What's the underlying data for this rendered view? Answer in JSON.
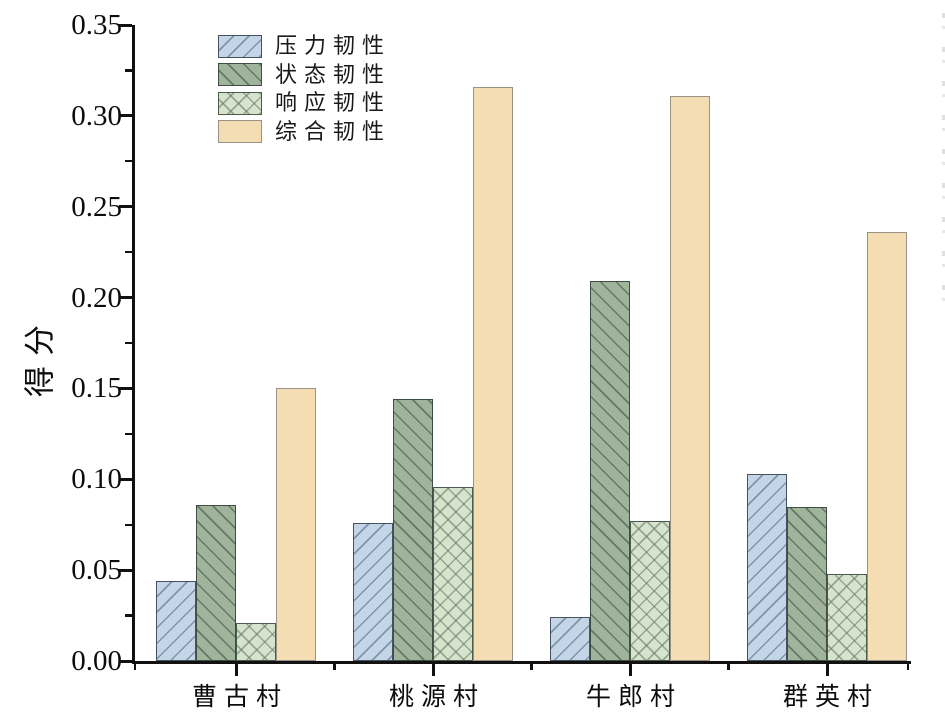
{
  "figure": {
    "background": "#ffffff",
    "axis_color": "#111111"
  },
  "chart_data": {
    "type": "bar",
    "title": "",
    "xlabel": "",
    "ylabel": "得分",
    "categories": [
      "曹古村",
      "桃源村",
      "牛郎村",
      "群英村"
    ],
    "series": [
      {
        "name": "压力韧性",
        "values": [
          0.044,
          0.076,
          0.024,
          0.103
        ],
        "fill": "#c4d5e7",
        "hatch": "forward-diagonal",
        "hatch_color": "rgba(90,112,136,0.65)",
        "edge": "#46525e"
      },
      {
        "name": "状态韧性",
        "values": [
          0.086,
          0.144,
          0.209,
          0.085
        ],
        "fill": "#a0b49c",
        "hatch": "back-diagonal",
        "hatch_color": "rgba(62,80,64,0.6)",
        "edge": "#3f4e44"
      },
      {
        "name": "响应韧性",
        "values": [
          0.021,
          0.096,
          0.077,
          0.048
        ],
        "fill": "#d6e3cd",
        "hatch": "cross-diagonal",
        "hatch_color": "rgba(96,116,94,0.55)",
        "edge": "#4d5a4e"
      },
      {
        "name": "综合韧性",
        "values": [
          0.15,
          0.316,
          0.311,
          0.236
        ],
        "fill": "#f4ddb3",
        "hatch": "none",
        "hatch_color": "",
        "edge": "#9b9287"
      }
    ],
    "ylim": [
      0,
      0.35
    ],
    "y_major_ticks": [
      0.0,
      0.05,
      0.1,
      0.15,
      0.2,
      0.25,
      0.3,
      0.35
    ],
    "y_tick_labels": [
      "0.00",
      "0.05",
      "0.10",
      "0.15",
      "0.20",
      "0.25",
      "0.30",
      "0.35"
    ],
    "y_minor_step": 0.025,
    "grid": false,
    "legend_position": "top-left"
  }
}
